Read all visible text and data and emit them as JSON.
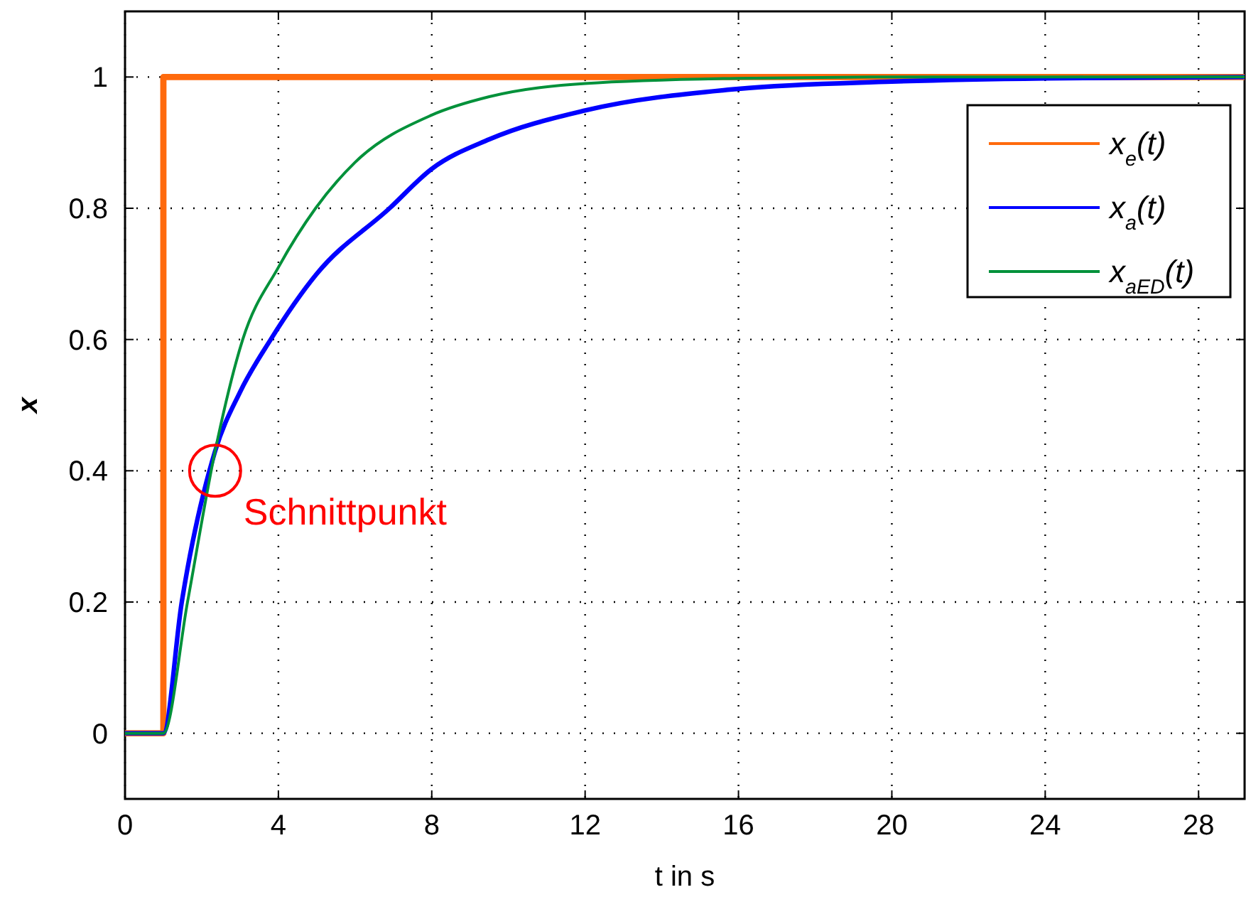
{
  "chart_data": {
    "type": "line",
    "xlabel": "t in s",
    "ylabel": "x",
    "xlim": [
      0,
      29.2
    ],
    "ylim": [
      -0.1,
      1.1
    ],
    "xticks": [
      0,
      4,
      8,
      12,
      16,
      20,
      24,
      28
    ],
    "yticks": [
      0,
      0.2,
      0.4,
      0.6,
      0.8,
      1
    ],
    "grid": true,
    "legend": "top right",
    "line_style": "solid",
    "marker": "none",
    "series": [
      {
        "name": "x$_{e}$(t)",
        "color": "#ff6a0d",
        "x": [
          0,
          1,
          1,
          29.2
        ],
        "values": [
          0,
          0,
          1,
          1
        ]
      },
      {
        "name": "x$_{a}$(t)",
        "color": "#0000ff",
        "x": [
          0,
          1,
          1.48,
          2.35,
          3,
          3.8,
          5,
          6.9,
          8,
          9.5,
          12,
          16,
          20,
          24,
          29.2
        ],
        "values": [
          0,
          0,
          0.2,
          0.43,
          0.52,
          0.6,
          0.7,
          0.8,
          0.86,
          0.905,
          0.949,
          0.982,
          0.993,
          0.998,
          1
        ]
      },
      {
        "name": "x$_{aED}$(t)",
        "color": "#00913a",
        "x": [
          0,
          1,
          1.63,
          2.35,
          3.07,
          4,
          4.97,
          6,
          8,
          9.5,
          12,
          16,
          20,
          29.2
        ],
        "values": [
          0,
          0,
          0.2,
          0.43,
          0.6,
          0.71,
          0.8,
          0.87,
          0.942,
          0.97,
          0.99,
          0.998,
          1,
          1
        ]
      }
    ],
    "annotations": [
      {
        "text": "Schnittpunkt",
        "x": 2.35,
        "y": 0.4
      }
    ]
  }
}
